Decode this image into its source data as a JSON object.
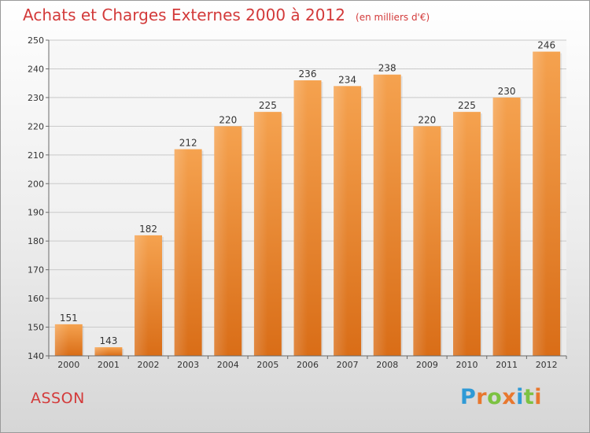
{
  "chart_data": {
    "type": "bar",
    "title": "Achats et Charges Externes 2000 à 2012",
    "subtitle": "(en milliers d'€)",
    "categories": [
      "2000",
      "2001",
      "2002",
      "2003",
      "2004",
      "2005",
      "2006",
      "2007",
      "2008",
      "2009",
      "2010",
      "2011",
      "2012"
    ],
    "values": [
      151,
      143,
      182,
      212,
      220,
      225,
      236,
      234,
      238,
      220,
      225,
      230,
      246
    ],
    "ylim": [
      140,
      250
    ],
    "yticks": [
      140,
      150,
      160,
      170,
      180,
      190,
      200,
      210,
      220,
      230,
      240,
      250
    ],
    "grid": true,
    "bar_color": "#f08c2e",
    "bar_color_dark": "#d96d17",
    "xlabel": "",
    "ylabel": ""
  },
  "footer": {
    "label": "ASSON"
  },
  "logo": {
    "text": "Proxiti",
    "colors": [
      "#2f9ad6",
      "#e8772e",
      "#7cc242",
      "#e8772e",
      "#2f9ad6",
      "#7cc242",
      "#e8772e"
    ]
  },
  "colors": {
    "accent": "#d33a3a",
    "grid": "#c8c8c8",
    "axis": "#6a6a6a"
  }
}
